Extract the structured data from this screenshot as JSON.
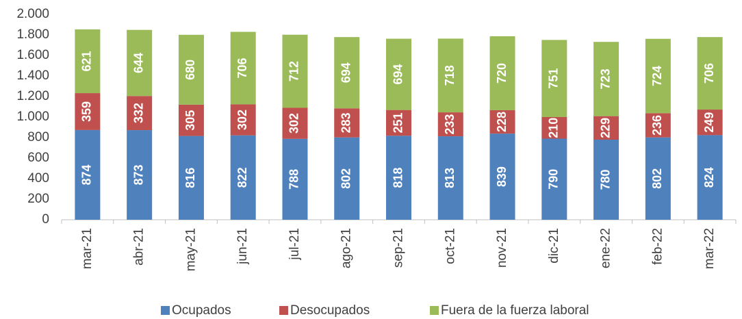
{
  "chart_data": {
    "type": "stacked_bar",
    "categories": [
      "mar-21",
      "abr-21",
      "may-21",
      "jun-21",
      "jul-21",
      "ago-21",
      "sep-21",
      "oct-21",
      "nov-21",
      "dic-21",
      "ene-22",
      "feb-22",
      "mar-22"
    ],
    "series": [
      {
        "name": "Ocupados",
        "color": "#4f81bd",
        "values": [
          874,
          873,
          816,
          822,
          788,
          802,
          818,
          813,
          839,
          790,
          780,
          802,
          824
        ]
      },
      {
        "name": "Desocupados",
        "color": "#c0504d",
        "values": [
          359,
          332,
          305,
          302,
          302,
          283,
          251,
          233,
          228,
          210,
          229,
          236,
          249
        ]
      },
      {
        "name": "Fuera de la fuerza laboral",
        "color": "#9bbb59",
        "values": [
          621,
          644,
          680,
          706,
          712,
          694,
          694,
          718,
          720,
          751,
          723,
          724,
          706
        ]
      }
    ],
    "ylim": [
      0,
      2000
    ],
    "yticks": [
      0,
      200,
      400,
      600,
      800,
      {
        "value": 1000,
        "label": "1.000"
      },
      {
        "value": 1200,
        "label": "1.200"
      },
      {
        "value": 1400,
        "label": "1.400"
      },
      {
        "value": 1600,
        "label": "1.600"
      },
      {
        "value": 1800,
        "label": "1.800"
      },
      {
        "value": 2000,
        "label": "2.000"
      }
    ],
    "legend": "bottom"
  }
}
